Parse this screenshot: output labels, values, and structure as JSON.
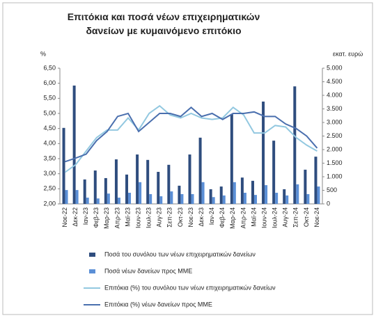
{
  "chart_data": {
    "type": "bar-line",
    "title": "Επιτόκια και ποσά νέων επιχειρηματικών δανείων με κυμαινόμενο επιτόκιο",
    "y_label": "%",
    "y2_label": "εκατ. ευρώ",
    "categories": [
      "Νοε-22",
      "Δεκ-22",
      "Ιαν-23",
      "Φεβ-23",
      "Μαρ-23",
      "Απρ-23",
      "Μαϊ-23",
      "Ιουν-23",
      "Ιουλ-23",
      "Αυγ-23",
      "Σεπ-23",
      "Οκτ-23",
      "Νοε-23",
      "Δεκ-23",
      "Ιαν-24",
      "Φεβ-24",
      "Μαρ-24",
      "Απρ-24",
      "Μαϊ-24",
      "Ιουν-24",
      "Ιουλ-24",
      "Αυγ-24",
      "Σεπ-24",
      "Οκτ-24",
      "Νοε-24"
    ],
    "series": [
      {
        "name": "Ποσά του συνόλου των νέων επιχειρηματικών δανείων",
        "type": "bar",
        "axis": "y2",
        "color": "#2f4d7e",
        "values": [
          2800,
          4360,
          900,
          1230,
          950,
          1640,
          1080,
          1820,
          1620,
          1180,
          1440,
          670,
          1820,
          2440,
          540,
          640,
          3310,
          970,
          850,
          3770,
          2330,
          540,
          4330,
          1260,
          1740
        ]
      },
      {
        "name": "Ποσά νέων δανείων προς ΜΜΕ",
        "type": "bar",
        "axis": "y2",
        "color": "#5b8fd6",
        "values": [
          510,
          510,
          230,
          200,
          380,
          230,
          410,
          800,
          360,
          280,
          460,
          360,
          360,
          800,
          250,
          310,
          800,
          410,
          330,
          690,
          410,
          310,
          720,
          360,
          640
        ]
      },
      {
        "name": "Επιτόκια (%) του συνόλου των νέων επιχειρηματικών δανείων",
        "type": "line",
        "axis": "y",
        "color": "#92c8e0",
        "values": [
          3.05,
          3.3,
          3.75,
          4.2,
          4.45,
          4.45,
          4.85,
          4.45,
          5.0,
          5.25,
          4.95,
          4.85,
          5.0,
          4.85,
          4.8,
          4.85,
          5.2,
          4.95,
          4.35,
          4.35,
          4.6,
          4.55,
          4.2,
          3.95,
          3.75
        ]
      },
      {
        "name": "Επιτόκια (%) νέων δανείων προς ΜΜΕ",
        "type": "line",
        "axis": "y",
        "color": "#4a6fae",
        "values": [
          3.4,
          3.52,
          3.65,
          4.1,
          4.4,
          4.9,
          5.0,
          4.4,
          4.7,
          5.0,
          5.0,
          4.9,
          5.2,
          4.9,
          5.0,
          4.8,
          5.0,
          5.0,
          5.05,
          4.9,
          4.9,
          4.65,
          4.5,
          4.25,
          3.85
        ]
      }
    ],
    "ylim": [
      2,
      6.5
    ],
    "yticks": [
      {
        "value": 2,
        "label": "2,00"
      },
      {
        "value": 2.5,
        "label": "2,50"
      },
      {
        "value": 3,
        "label": "3,00"
      },
      {
        "value": 3.5,
        "label": "3,50"
      },
      {
        "value": 4,
        "label": "4,00"
      },
      {
        "value": 4.5,
        "label": "4,50"
      },
      {
        "value": 5,
        "label": "5,00"
      },
      {
        "value": 5.5,
        "label": "5,50"
      },
      {
        "value": 6,
        "label": "6,00"
      },
      {
        "value": 6.5,
        "label": "6,50"
      }
    ],
    "y2lim": [
      0,
      5000
    ],
    "y2ticks": [
      0,
      500,
      {
        "value": 1000,
        "label": "1.000"
      },
      {
        "value": 1500,
        "label": "1.500"
      },
      {
        "value": 2000,
        "label": "2.000"
      },
      {
        "value": 2500,
        "label": "2.500"
      },
      {
        "value": 3000,
        "label": "3.000"
      },
      {
        "value": 3500,
        "label": "3.500"
      },
      {
        "value": 4000,
        "label": "4.000"
      },
      {
        "value": 4500,
        "label": "4.500"
      },
      {
        "value": 5000,
        "label": "5.000"
      }
    ],
    "grid": false,
    "legend": "bottom"
  }
}
